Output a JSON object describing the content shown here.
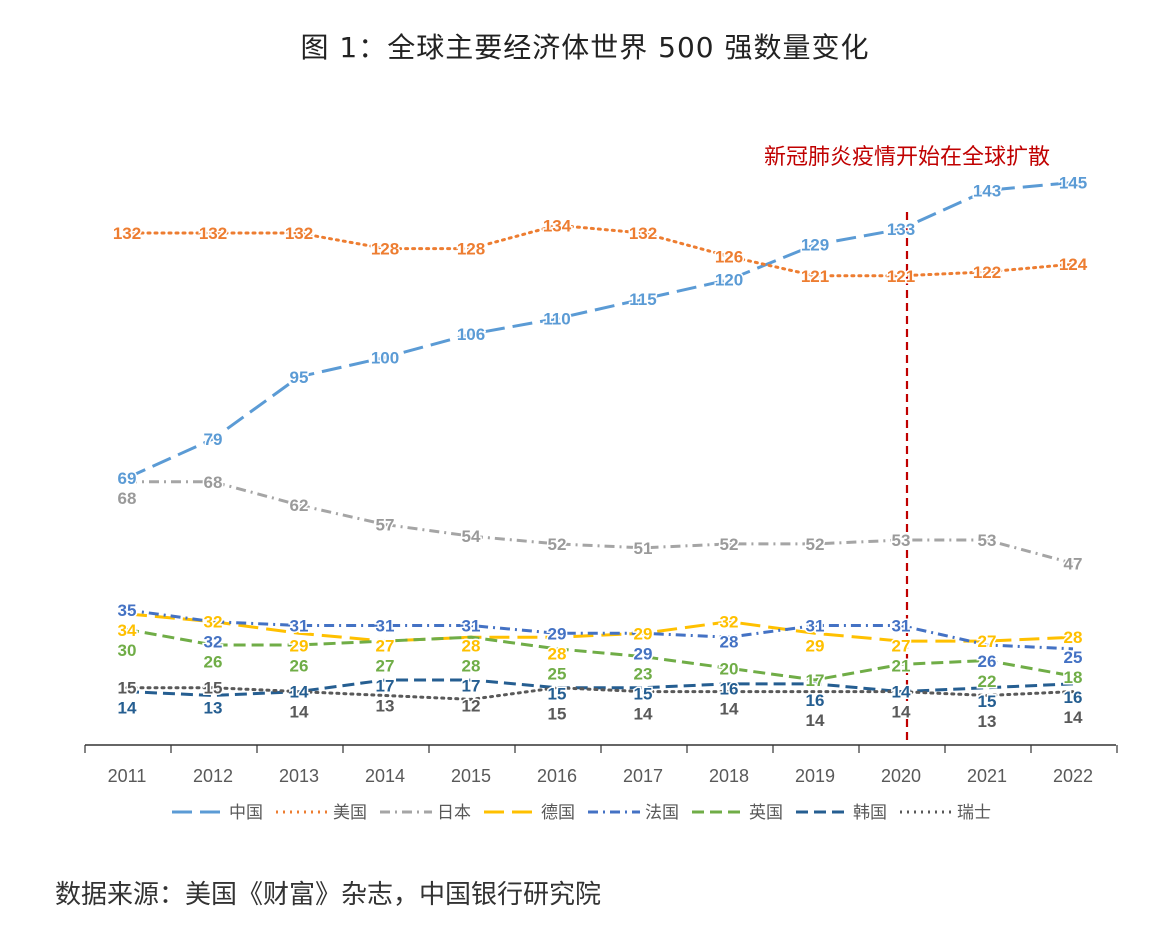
{
  "chart_data": {
    "type": "line",
    "title": "图 1：全球主要经济体世界 500 强数量变化",
    "source": "数据来源：美国《财富》杂志，中国银行研究院",
    "annotation": {
      "text": "新冠肺炎疫情开始在全球扩散",
      "x": 2020,
      "color": "#c00000"
    },
    "categories": [
      "2011",
      "2012",
      "2013",
      "2014",
      "2015",
      "2016",
      "2017",
      "2018",
      "2019",
      "2020",
      "2021",
      "2022"
    ],
    "ylim": [
      0,
      150
    ],
    "grid": false,
    "legend": "bottom",
    "series": [
      {
        "name": "中国",
        "color": "#5b9bd5",
        "style": "long-dash",
        "values": [
          69,
          79,
          95,
          100,
          106,
          110,
          115,
          120,
          129,
          133,
          143,
          145
        ]
      },
      {
        "name": "美国",
        "color": "#ed7d31",
        "style": "dot",
        "values": [
          132,
          132,
          132,
          128,
          128,
          134,
          132,
          126,
          121,
          121,
          122,
          124
        ]
      },
      {
        "name": "日本",
        "color": "#a5a5a5",
        "style": "dash-dot",
        "values": [
          68,
          68,
          62,
          57,
          54,
          52,
          51,
          52,
          52,
          53,
          53,
          47
        ]
      },
      {
        "name": "德国",
        "color": "#ffc000",
        "style": "long-dash",
        "values": [
          34,
          32,
          29,
          27,
          28,
          28,
          29,
          32,
          29,
          27,
          27,
          28
        ]
      },
      {
        "name": "法国",
        "color": "#4472c4",
        "style": "dash-dot",
        "values": [
          35,
          32,
          31,
          31,
          31,
          29,
          29,
          28,
          31,
          31,
          26,
          25
        ]
      },
      {
        "name": "英国",
        "color": "#70ad47",
        "style": "dash",
        "values": [
          30,
          26,
          26,
          27,
          28,
          25,
          23,
          20,
          17,
          21,
          22,
          18
        ]
      },
      {
        "name": "韩国",
        "color": "#255e91",
        "style": "dash",
        "values": [
          14,
          13,
          14,
          17,
          17,
          15,
          15,
          16,
          16,
          14,
          15,
          16
        ]
      },
      {
        "name": "瑞士",
        "color": "#595959",
        "style": "dot",
        "values": [
          15,
          15,
          14,
          13,
          12,
          15,
          14,
          14,
          14,
          14,
          13,
          14
        ]
      }
    ]
  }
}
